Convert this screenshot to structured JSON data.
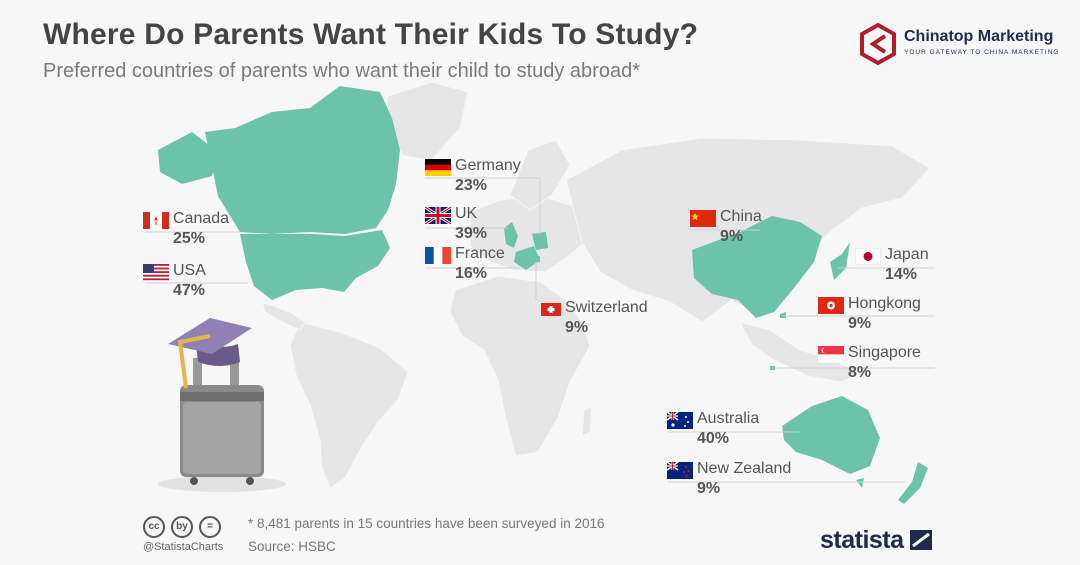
{
  "title": "Where Do Parents Want Their Kids To Study?",
  "subtitle": "Preferred countries of parents who want their child to study abroad*",
  "brand": {
    "name": "Chinatop Marketing",
    "tagline": "YOUR GATEWAY TO CHINA MARKETING",
    "color": "#b01e2e"
  },
  "colors": {
    "highlight": "#6cc3a9",
    "land": "#e6e6e6",
    "background": "#f7f7f7"
  },
  "chart_data": {
    "type": "map",
    "metric": "Share of parents preferring country",
    "unit": "%",
    "countries": [
      {
        "name": "Canada",
        "value": "25%"
      },
      {
        "name": "USA",
        "value": "47%"
      },
      {
        "name": "Germany",
        "value": "23%"
      },
      {
        "name": "UK",
        "value": "39%"
      },
      {
        "name": "France",
        "value": "16%"
      },
      {
        "name": "Switzerland",
        "value": "9%"
      },
      {
        "name": "China",
        "value": "9%"
      },
      {
        "name": "Japan",
        "value": "14%"
      },
      {
        "name": "Hongkong",
        "value": "9%"
      },
      {
        "name": "Singapore",
        "value": "8%"
      },
      {
        "name": "Australia",
        "value": "40%"
      },
      {
        "name": "New Zealand",
        "value": "9%"
      }
    ]
  },
  "footer": {
    "handle": "@StatistaCharts",
    "note": "* 8,481 parents in 15 countries have been surveyed in 2016",
    "source": "Source: HSBC",
    "cc_icons": [
      "cc",
      "by",
      "="
    ],
    "statista": "statista"
  }
}
